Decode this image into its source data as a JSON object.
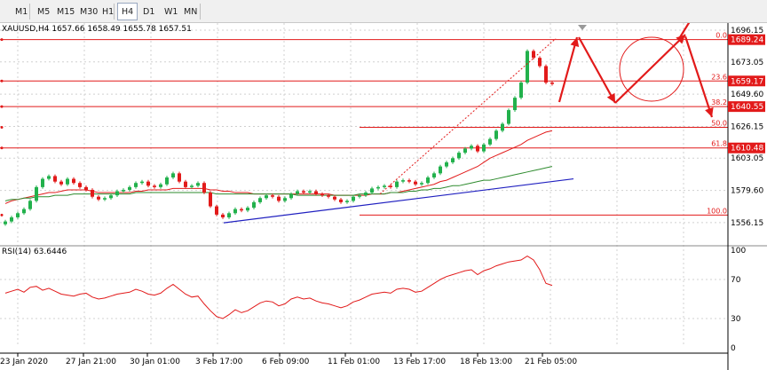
{
  "toolbar": {
    "timeframes": [
      {
        "label": "M1",
        "active": false
      },
      {
        "label": "M5",
        "active": false
      },
      {
        "label": "M15",
        "active": false
      },
      {
        "label": "M30",
        "active": false
      },
      {
        "label": "H1",
        "active": false
      },
      {
        "label": "H4",
        "active": true
      },
      {
        "label": "D1",
        "active": false
      },
      {
        "label": "W1",
        "active": false
      },
      {
        "label": "MN",
        "active": false
      }
    ]
  },
  "chart": {
    "header": "XAUUSD,H4  1657.66 1658.49 1655.78 1657.51",
    "price_axis": [
      "1696.15",
      "1673.05",
      "1649.60",
      "1626.15",
      "1603.05",
      "1579.60",
      "1556.15"
    ],
    "price_tags": [
      {
        "label": "1689.24",
        "price": 1689.24
      },
      {
        "label": "1659.17",
        "price": 1659.17
      },
      {
        "label": "1640.55",
        "price": 1640.55
      },
      {
        "label": "1610.48",
        "price": 1610.48
      }
    ],
    "fibonacci": [
      {
        "label": "0.0",
        "price": 1689.24
      },
      {
        "label": "23.6",
        "price": 1659.17
      },
      {
        "label": "38.2",
        "price": 1640.55
      },
      {
        "label": "50.0",
        "price": 1625.5
      },
      {
        "label": "61.8",
        "price": 1610.48
      },
      {
        "label": "100.0",
        "price": 1561.7
      }
    ],
    "time_axis": [
      "23 Jan 2020",
      "27 Jan 21:00",
      "30 Jan 01:00",
      "3 Feb 17:00",
      "6 Feb 09:00",
      "11 Feb 01:00",
      "13 Feb 17:00",
      "18 Feb 13:00",
      "21 Feb 05:00"
    ],
    "colors": {
      "bull": "#22b14c",
      "bear": "#e21a1a",
      "ma_fast": "#e21a1a",
      "ma_mid": "#2e8b2e",
      "ma_slow": "#2020c0",
      "rsi": "#e21a1a",
      "level": "#e21a1a"
    }
  },
  "rsi": {
    "header": "RSI(14) 63.6446",
    "axis": [
      "100",
      "70",
      "30",
      "0"
    ]
  },
  "chart_data": {
    "type": "candlestick",
    "symbol": "XAUUSD",
    "timeframe": "H4",
    "ylim": [
      1549,
      1700
    ],
    "closes": [
      1557,
      1560,
      1563,
      1566,
      1572,
      1582,
      1588,
      1590,
      1586,
      1584,
      1588,
      1585,
      1582,
      1580,
      1575,
      1573,
      1574,
      1576,
      1579,
      1580,
      1582,
      1585,
      1586,
      1583,
      1582,
      1584,
      1589,
      1592,
      1586,
      1582,
      1583,
      1585,
      1578,
      1568,
      1562,
      1560,
      1563,
      1566,
      1565,
      1567,
      1571,
      1574,
      1576,
      1575,
      1572,
      1574,
      1577,
      1579,
      1578,
      1579,
      1577,
      1576,
      1575,
      1573,
      1571,
      1572,
      1575,
      1576,
      1578,
      1581,
      1582,
      1583,
      1582,
      1586,
      1587,
      1586,
      1584,
      1585,
      1589,
      1592,
      1597,
      1600,
      1603,
      1607,
      1610,
      1612,
      1608,
      1613,
      1617,
      1623,
      1628,
      1638,
      1647,
      1658,
      1681,
      1676,
      1670,
      1658,
      1657
    ],
    "ma_fast": [
      1570,
      1572,
      1573,
      1574,
      1575,
      1576,
      1577,
      1578,
      1578,
      1579,
      1580,
      1580,
      1580,
      1580,
      1579,
      1578,
      1578,
      1578,
      1578,
      1578,
      1578,
      1579,
      1579,
      1580,
      1580,
      1580,
      1580,
      1581,
      1581,
      1581,
      1581,
      1581,
      1581,
      1580,
      1580,
      1579,
      1579,
      1578,
      1578,
      1578,
      1577,
      1577,
      1577,
      1577,
      1577,
      1577,
      1577,
      1577,
      1577,
      1577,
      1577,
      1577,
      1577,
      1576,
      1576,
      1576,
      1576,
      1576,
      1576,
      1577,
      1577,
      1577,
      1578,
      1578,
      1579,
      1580,
      1581,
      1582,
      1583,
      1584,
      1586,
      1587,
      1589,
      1591,
      1593,
      1595,
      1597,
      1600,
      1603,
      1605,
      1607,
      1609,
      1611,
      1613,
      1616,
      1618,
      1620,
      1622,
      1623
    ],
    "ma_mid": [
      1572,
      1573,
      1573,
      1574,
      1574,
      1575,
      1575,
      1575,
      1576,
      1576,
      1576,
      1577,
      1577,
      1577,
      1577,
      1577,
      1577,
      1577,
      1577,
      1577,
      1577,
      1578,
      1578,
      1578,
      1578,
      1578,
      1578,
      1578,
      1578,
      1578,
      1578,
      1578,
      1578,
      1578,
      1577,
      1577,
      1577,
      1577,
      1577,
      1577,
      1577,
      1577,
      1577,
      1577,
      1577,
      1577,
      1577,
      1576,
      1576,
      1576,
      1576,
      1576,
      1576,
      1576,
      1576,
      1576,
      1576,
      1577,
      1577,
      1577,
      1577,
      1577,
      1578,
      1578,
      1578,
      1579,
      1579,
      1580,
      1580,
      1581,
      1581,
      1582,
      1583,
      1583,
      1584,
      1585,
      1586,
      1587,
      1587,
      1588,
      1589,
      1590,
      1591,
      1592,
      1593,
      1594,
      1595,
      1596,
      1597
    ],
    "ma_slow_start": 1556,
    "ma_slow_end": 1588,
    "rsi": [
      56,
      58,
      60,
      57,
      62,
      63,
      59,
      61,
      58,
      55,
      54,
      53,
      55,
      56,
      52,
      50,
      51,
      53,
      55,
      56,
      57,
      60,
      58,
      55,
      54,
      56,
      61,
      65,
      60,
      55,
      52,
      53,
      45,
      38,
      32,
      30,
      34,
      39,
      36,
      38,
      42,
      46,
      48,
      47,
      43,
      45,
      50,
      52,
      50,
      51,
      48,
      46,
      45,
      43,
      41,
      43,
      47,
      49,
      52,
      55,
      56,
      57,
      56,
      60,
      61,
      60,
      57,
      58,
      62,
      66,
      70,
      73,
      75,
      77,
      79,
      80,
      75,
      79,
      81,
      84,
      86,
      88,
      89,
      90,
      94,
      90,
      80,
      66,
      64
    ]
  }
}
